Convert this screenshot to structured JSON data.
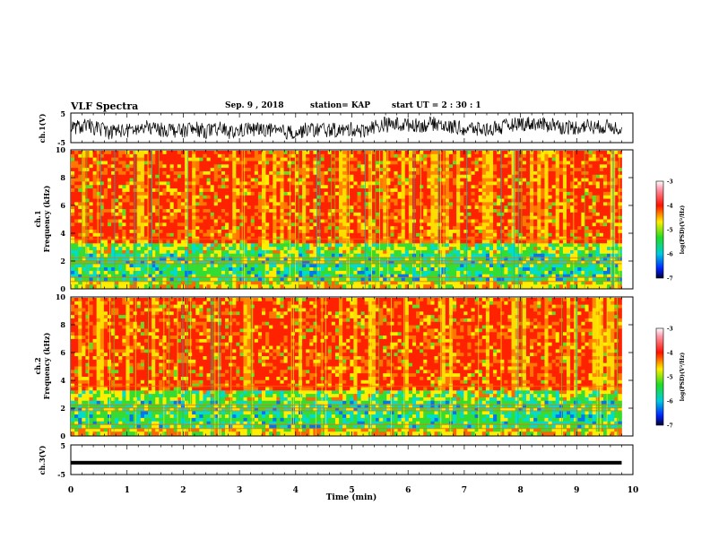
{
  "header": {
    "title": "VLF Spectra",
    "date": "Sep. 9 , 2018",
    "station": "station= KAP",
    "start": "start  UT =  2 : 30 : 1"
  },
  "chart_data": [
    {
      "type": "line",
      "name": "ch1-waveform",
      "ylabel": "ch.1(V)",
      "ylim": [
        -5,
        5
      ],
      "yticks": [
        "5",
        "-5"
      ],
      "xlim": [
        0,
        10
      ],
      "description_level": "noisy waveform between about -4 and 4 V over 0-9.8 min"
    },
    {
      "type": "heatmap",
      "name": "ch1-spectrogram",
      "ylabel": "ch.1\nFrequency  (kHz)",
      "ylim": [
        0,
        10
      ],
      "yticks": [
        "0",
        "2",
        "4",
        "6",
        "8",
        "10"
      ],
      "xlim": [
        0,
        9.8
      ],
      "colorbar": {
        "label": "log(PSD)(V²/Hz)",
        "range": [
          -7,
          -3
        ],
        "ticks": [
          "-3",
          "-4",
          "-5",
          "-6",
          "-7"
        ]
      }
    },
    {
      "type": "heatmap",
      "name": "ch2-spectrogram",
      "ylabel": "ch.2\nFrequency  (kHz)",
      "ylim": [
        0,
        10
      ],
      "yticks": [
        "0",
        "2",
        "4",
        "6",
        "8",
        "10"
      ],
      "xlim": [
        0,
        9.8
      ],
      "colorbar": {
        "label": "log(PSD)(V²/Hz)",
        "range": [
          -7,
          -3
        ],
        "ticks": [
          "-3",
          "-4",
          "-5",
          "-6",
          "-7"
        ]
      }
    },
    {
      "type": "line",
      "name": "ch3-waveform",
      "ylabel": "ch.3(V)",
      "ylim": [
        -5,
        5
      ],
      "yticks": [
        "5",
        "-5"
      ],
      "xlim": [
        0,
        10
      ],
      "level": -1
    }
  ],
  "xaxis": {
    "label": "Time  (min)",
    "ticks": [
      "0",
      "1",
      "2",
      "3",
      "4",
      "5",
      "6",
      "7",
      "8",
      "9",
      "10"
    ]
  },
  "colors": {
    "red": "#ff2200",
    "orange": "#ff8800",
    "yellow": "#ffee00",
    "green": "#33dd33",
    "cyan": "#00ddcc",
    "blue": "#0033ff"
  }
}
